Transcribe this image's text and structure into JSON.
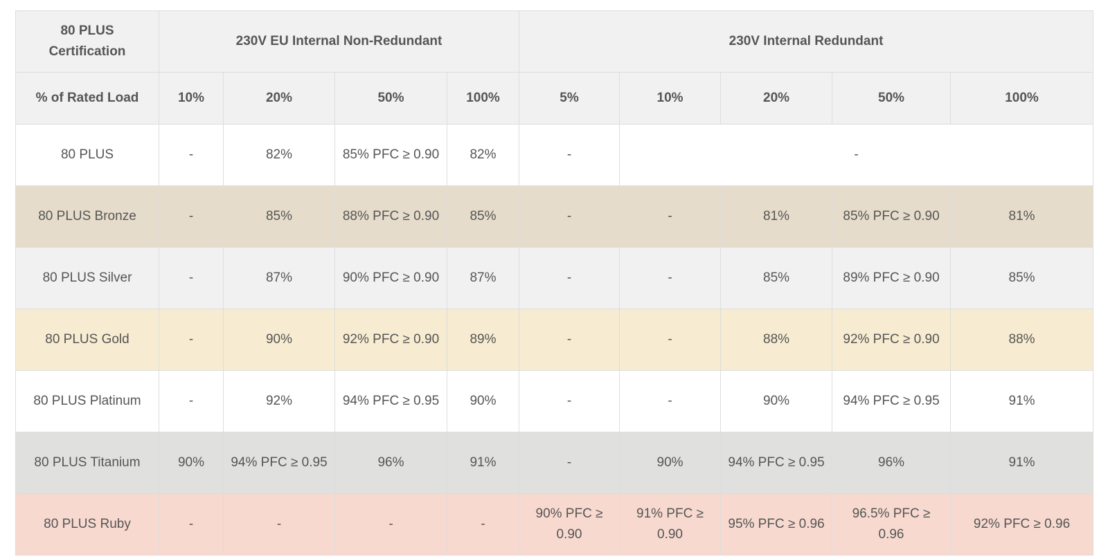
{
  "table": {
    "corner_label": "80 PLUS\nCertification",
    "groups": [
      {
        "label": "230V EU Internal Non-Redundant",
        "span": 4
      },
      {
        "label": "230V Internal Redundant",
        "span": 5
      }
    ],
    "load_label": "% of Rated Load",
    "loads": [
      "10%",
      "20%",
      "50%",
      "100%",
      "5%",
      "10%",
      "20%",
      "50%",
      "100%"
    ],
    "rows": [
      {
        "name": "80 PLUS",
        "background": "#ffffff",
        "cells": [
          {
            "text": "-"
          },
          {
            "text": "82%"
          },
          {
            "text": "85% PFC ≥ 0.90"
          },
          {
            "text": "82%"
          },
          {
            "text": "-"
          },
          {
            "text": "-",
            "colspan": 4
          }
        ]
      },
      {
        "name": "80 PLUS Bronze",
        "background": "#e6dccb",
        "cells": [
          {
            "text": "-"
          },
          {
            "text": "85%"
          },
          {
            "text": "88% PFC ≥ 0.90"
          },
          {
            "text": "85%"
          },
          {
            "text": "-"
          },
          {
            "text": "-"
          },
          {
            "text": "81%"
          },
          {
            "text": "85% PFC ≥ 0.90"
          },
          {
            "text": "81%"
          }
        ]
      },
      {
        "name": "80 PLUS Silver",
        "background": "#f1f1f1",
        "cells": [
          {
            "text": "-"
          },
          {
            "text": "87%"
          },
          {
            "text": "90% PFC ≥ 0.90"
          },
          {
            "text": "87%"
          },
          {
            "text": "-"
          },
          {
            "text": "-"
          },
          {
            "text": "85%"
          },
          {
            "text": "89% PFC ≥ 0.90"
          },
          {
            "text": "85%"
          }
        ]
      },
      {
        "name": "80 PLUS Gold",
        "background": "#f7ebd1",
        "cells": [
          {
            "text": "-"
          },
          {
            "text": "90%"
          },
          {
            "text": "92% PFC ≥ 0.90"
          },
          {
            "text": "89%"
          },
          {
            "text": "-"
          },
          {
            "text": "-"
          },
          {
            "text": "88%"
          },
          {
            "text": "92% PFC ≥ 0.90"
          },
          {
            "text": "88%"
          }
        ]
      },
      {
        "name": "80 PLUS Platinum",
        "background": "#ffffff",
        "cells": [
          {
            "text": "-"
          },
          {
            "text": "92%"
          },
          {
            "text": "94% PFC ≥ 0.95"
          },
          {
            "text": "90%"
          },
          {
            "text": "-"
          },
          {
            "text": "-"
          },
          {
            "text": "90%"
          },
          {
            "text": "94% PFC ≥ 0.95"
          },
          {
            "text": "91%"
          }
        ]
      },
      {
        "name": "80 PLUS Titanium",
        "background": "#e0e0df",
        "cells": [
          {
            "text": "90%"
          },
          {
            "text": "94% PFC ≥ 0.95"
          },
          {
            "text": "96%"
          },
          {
            "text": "91%"
          },
          {
            "text": "-"
          },
          {
            "text": "90%"
          },
          {
            "text": "94% PFC ≥ 0.95"
          },
          {
            "text": "96%"
          },
          {
            "text": "91%"
          }
        ]
      },
      {
        "name": "80 PLUS Ruby",
        "background": "#f7d9cf",
        "cells": [
          {
            "text": "-"
          },
          {
            "text": "-"
          },
          {
            "text": "-"
          },
          {
            "text": "-"
          },
          {
            "text": "90% PFC ≥ 0.90"
          },
          {
            "text": "91% PFC ≥ 0.90"
          },
          {
            "text": "95% PFC ≥ 0.96"
          },
          {
            "text": "96.5% PFC ≥ 0.96"
          },
          {
            "text": "92% PFC ≥ 0.96"
          }
        ]
      }
    ]
  }
}
